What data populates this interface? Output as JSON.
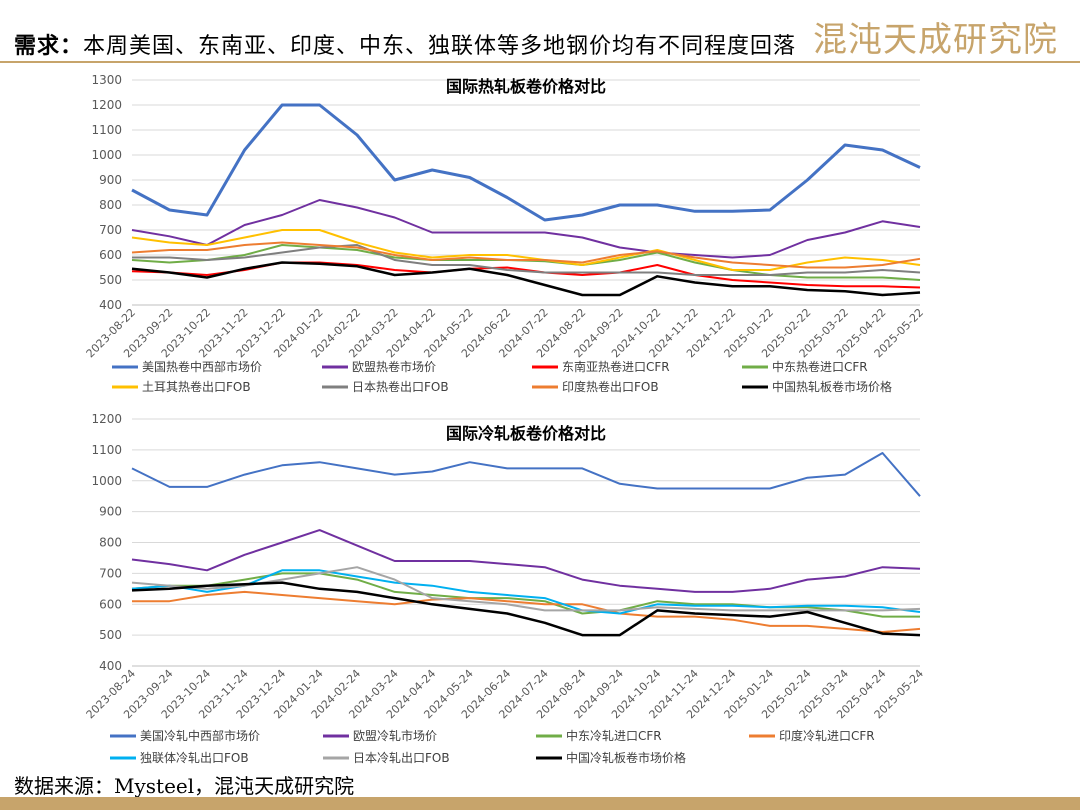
{
  "header": {
    "headline_label": "需求：",
    "headline_text": "本周美国、东南亚、印度、中东、独联体等多地钢价均有不同程度回落",
    "logo": "混沌天成研究院"
  },
  "footer": {
    "source": "数据来源：Mysteel，混沌天成研究院"
  },
  "colors": {
    "accent": "#c7a46b",
    "grid": "#d9d9d9",
    "axis_text": "#595959"
  },
  "chart_data": [
    {
      "type": "line",
      "title": "国际热轧板卷价格对比",
      "xlabel": "",
      "ylabel": "",
      "ylim": [
        400,
        1300
      ],
      "yticks": [
        400,
        500,
        600,
        700,
        800,
        900,
        1000,
        1100,
        1200,
        1300
      ],
      "grid": true,
      "legend_position": "bottom",
      "categories": [
        "2023-08-22",
        "2023-09-22",
        "2023-10-22",
        "2023-11-22",
        "2023-12-22",
        "2024-01-22",
        "2024-02-22",
        "2024-03-22",
        "2024-04-22",
        "2024-05-22",
        "2024-06-22",
        "2024-07-22",
        "2024-08-22",
        "2024-09-22",
        "2024-10-22",
        "2024-11-22",
        "2024-12-22",
        "2025-01-22",
        "2025-02-22",
        "2025-03-22",
        "2025-04-22",
        "2025-05-22"
      ],
      "series": [
        {
          "name": "美国热卷中西部市场价",
          "color": "#4472c4",
          "width": 3,
          "values": [
            860,
            780,
            760,
            1020,
            1200,
            1200,
            1080,
            900,
            940,
            910,
            830,
            740,
            760,
            800,
            800,
            775,
            775,
            780,
            900,
            1040,
            1020,
            950
          ]
        },
        {
          "name": "欧盟热卷市场价",
          "color": "#7030a0",
          "width": 2,
          "values": [
            700,
            675,
            640,
            720,
            760,
            820,
            790,
            750,
            690,
            690,
            690,
            690,
            670,
            630,
            610,
            600,
            590,
            600,
            660,
            690,
            735,
            712
          ]
        },
        {
          "name": "东南亚热卷进口CFR",
          "color": "#ff0000",
          "width": 2,
          "values": [
            535,
            530,
            520,
            540,
            570,
            570,
            560,
            540,
            530,
            545,
            550,
            530,
            520,
            530,
            560,
            520,
            500,
            490,
            480,
            475,
            475,
            470
          ]
        },
        {
          "name": "中东热卷进口CFR",
          "color": "#70ad47",
          "width": 2,
          "values": [
            580,
            570,
            580,
            600,
            640,
            630,
            620,
            590,
            580,
            580,
            580,
            575,
            560,
            580,
            610,
            570,
            540,
            520,
            510,
            510,
            510,
            500
          ]
        },
        {
          "name": "土耳其热卷出口FOB",
          "color": "#ffc000",
          "width": 2,
          "values": [
            670,
            650,
            640,
            670,
            700,
            700,
            650,
            610,
            590,
            600,
            600,
            580,
            560,
            590,
            620,
            580,
            540,
            540,
            570,
            590,
            580,
            560
          ]
        },
        {
          "name": "日本热卷出口FOB",
          "color": "#7f7f7f",
          "width": 2,
          "values": [
            590,
            590,
            580,
            590,
            610,
            630,
            640,
            580,
            560,
            560,
            540,
            530,
            530,
            530,
            530,
            520,
            520,
            520,
            530,
            530,
            540,
            530
          ]
        },
        {
          "name": "印度热卷出口FOB",
          "color": "#ed7d31",
          "width": 2,
          "values": [
            610,
            620,
            620,
            640,
            650,
            640,
            630,
            600,
            580,
            590,
            580,
            580,
            570,
            600,
            615,
            590,
            570,
            560,
            550,
            550,
            560,
            585
          ]
        },
        {
          "name": "中国热轧板卷市场价格",
          "color": "#000000",
          "width": 2.5,
          "values": [
            545,
            530,
            510,
            545,
            570,
            565,
            555,
            520,
            530,
            545,
            520,
            480,
            440,
            440,
            515,
            490,
            475,
            475,
            460,
            455,
            440,
            450
          ]
        }
      ]
    },
    {
      "type": "line",
      "title": "国际冷轧板卷价格对比",
      "xlabel": "",
      "ylabel": "",
      "ylim": [
        400,
        1200
      ],
      "yticks": [
        400,
        500,
        600,
        700,
        800,
        900,
        1000,
        1100,
        1200
      ],
      "grid": true,
      "legend_position": "bottom",
      "categories": [
        "2023-08-24",
        "2023-09-24",
        "2023-10-24",
        "2023-11-24",
        "2023-12-24",
        "2024-01-24",
        "2024-02-24",
        "2024-03-24",
        "2024-04-24",
        "2024-05-24",
        "2024-06-24",
        "2024-07-24",
        "2024-08-24",
        "2024-09-24",
        "2024-10-24",
        "2024-11-24",
        "2024-12-24",
        "2025-01-24",
        "2025-02-24",
        "2025-03-24",
        "2025-04-24",
        "2025-05-24"
      ],
      "series": [
        {
          "name": "美国冷轧中西部市场价",
          "color": "#4472c4",
          "width": 2,
          "values": [
            1040,
            980,
            980,
            1020,
            1050,
            1060,
            1040,
            1020,
            1030,
            1060,
            1040,
            1040,
            1040,
            990,
            975,
            975,
            975,
            975,
            1010,
            1020,
            1090,
            950
          ]
        },
        {
          "name": "欧盟冷轧市场价",
          "color": "#7030a0",
          "width": 2,
          "values": [
            745,
            730,
            710,
            760,
            800,
            840,
            790,
            740,
            740,
            740,
            730,
            720,
            680,
            660,
            650,
            640,
            640,
            650,
            680,
            690,
            720,
            715
          ]
        },
        {
          "name": "中东冷轧进口CFR",
          "color": "#70ad47",
          "width": 2,
          "values": [
            650,
            660,
            660,
            680,
            700,
            700,
            680,
            640,
            630,
            620,
            620,
            610,
            570,
            580,
            610,
            600,
            600,
            590,
            590,
            580,
            560,
            560
          ]
        },
        {
          "name": "印度冷轧进口CFR",
          "color": "#ed7d31",
          "width": 2,
          "values": [
            610,
            610,
            630,
            640,
            630,
            620,
            610,
            600,
            615,
            620,
            610,
            600,
            600,
            570,
            560,
            560,
            550,
            530,
            530,
            520,
            510,
            520
          ]
        },
        {
          "name": "独联体冷轧出口FOB",
          "color": "#00b0f0",
          "width": 2,
          "values": [
            650,
            660,
            640,
            660,
            710,
            710,
            690,
            670,
            660,
            640,
            630,
            620,
            580,
            570,
            600,
            595,
            595,
            590,
            595,
            595,
            590,
            575
          ]
        },
        {
          "name": "日本冷轧出口FOB",
          "color": "#a5a5a5",
          "width": 2,
          "values": [
            670,
            660,
            650,
            660,
            680,
            700,
            720,
            680,
            620,
            610,
            600,
            580,
            580,
            580,
            590,
            585,
            580,
            580,
            580,
            580,
            580,
            585
          ]
        },
        {
          "name": "中国冷轧板卷市场价格",
          "color": "#000000",
          "width": 2.5,
          "values": [
            645,
            650,
            660,
            665,
            670,
            650,
            640,
            620,
            600,
            585,
            570,
            540,
            500,
            500,
            580,
            570,
            565,
            560,
            575,
            540,
            505,
            500
          ]
        }
      ]
    }
  ]
}
